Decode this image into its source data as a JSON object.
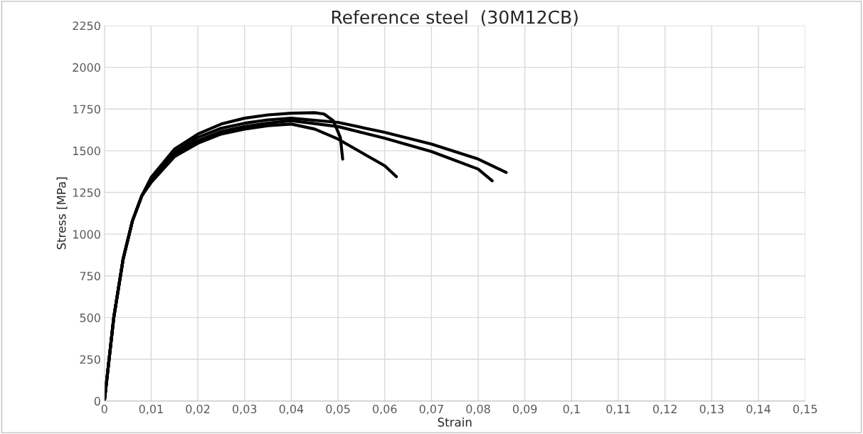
{
  "chart_data": {
    "type": "line",
    "title": "Reference steel  (30M12CB)",
    "xlabel": "Strain",
    "ylabel": "Stress [MPa]",
    "series": [
      {
        "color": "#000000",
        "x": [
          0,
          0.002,
          0.004,
          0.006,
          0.008,
          0.01,
          0.015,
          0.02,
          0.025,
          0.03,
          0.035,
          0.04,
          0.045,
          0.047,
          0.049,
          0.0505,
          0.051
        ],
        "values": [
          0,
          500,
          850,
          1080,
          1230,
          1340,
          1510,
          1600,
          1660,
          1695,
          1715,
          1725,
          1728,
          1720,
          1680,
          1580,
          1450
        ]
      },
      {
        "color": "#000000",
        "x": [
          0,
          0.002,
          0.004,
          0.006,
          0.008,
          0.01,
          0.015,
          0.02,
          0.025,
          0.03,
          0.035,
          0.04,
          0.05,
          0.06,
          0.07,
          0.08,
          0.086
        ],
        "values": [
          0,
          500,
          850,
          1080,
          1230,
          1330,
          1490,
          1580,
          1635,
          1665,
          1685,
          1695,
          1670,
          1610,
          1540,
          1450,
          1370
        ]
      },
      {
        "color": "#000000",
        "x": [
          0,
          0.002,
          0.004,
          0.006,
          0.008,
          0.01,
          0.015,
          0.02,
          0.025,
          0.03,
          0.035,
          0.04,
          0.05,
          0.06,
          0.07,
          0.08,
          0.083
        ],
        "values": [
          0,
          500,
          850,
          1080,
          1230,
          1320,
          1480,
          1560,
          1615,
          1645,
          1665,
          1680,
          1645,
          1575,
          1495,
          1390,
          1320
        ]
      },
      {
        "color": "#000000",
        "x": [
          0,
          0.002,
          0.004,
          0.006,
          0.008,
          0.01,
          0.015,
          0.02,
          0.025,
          0.03,
          0.035,
          0.04,
          0.045,
          0.05,
          0.055,
          0.06,
          0.0625
        ],
        "values": [
          0,
          500,
          850,
          1080,
          1230,
          1310,
          1465,
          1545,
          1600,
          1630,
          1650,
          1660,
          1630,
          1570,
          1490,
          1410,
          1345
        ]
      }
    ],
    "xlim": [
      0,
      0.15
    ],
    "ylim": [
      0,
      2250
    ],
    "xticks": [
      0,
      {
        "value": 0.01,
        "label": "0,01"
      },
      {
        "value": 0.02,
        "label": "0,02"
      },
      {
        "value": 0.03,
        "label": "0,03"
      },
      {
        "value": 0.04,
        "label": "0,04"
      },
      {
        "value": 0.05,
        "label": "0,05"
      },
      {
        "value": 0.06,
        "label": "0,06"
      },
      {
        "value": 0.07,
        "label": "0,07"
      },
      {
        "value": 0.08,
        "label": "0,08"
      },
      {
        "value": 0.09,
        "label": "0,09"
      },
      {
        "value": 0.1,
        "label": "0,1"
      },
      {
        "value": 0.11,
        "label": "0,11"
      },
      {
        "value": 0.12,
        "label": "0,12"
      },
      {
        "value": 0.13,
        "label": "0,13"
      },
      {
        "value": 0.14,
        "label": "0,14"
      },
      {
        "value": 0.15,
        "label": "0,15"
      }
    ],
    "yticks": [
      0,
      250,
      500,
      750,
      1000,
      1250,
      1500,
      1750,
      2000,
      2250
    ],
    "grid": true,
    "marker": "none",
    "line_style": "solid"
  }
}
